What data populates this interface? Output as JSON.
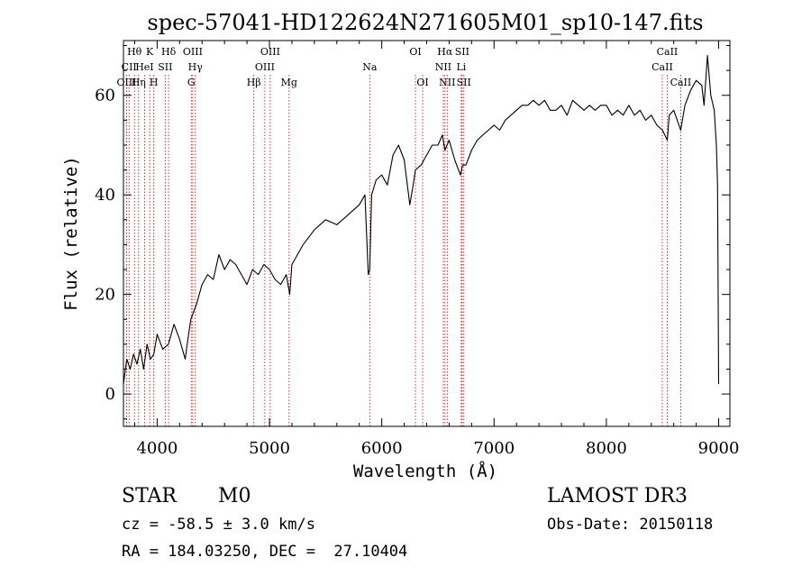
{
  "chart_data": {
    "type": "line",
    "title": "spec-57041-HD122624N271605M01_sp10-147.fits",
    "xlabel": "Wavelength (Å)",
    "ylabel": "Flux (relative)",
    "xlim": [
      3700,
      9100
    ],
    "ylim": [
      -6.5,
      71
    ],
    "xticks": [
      4000,
      5000,
      6000,
      7000,
      8000,
      9000
    ],
    "yticks": [
      0,
      20,
      40,
      60
    ],
    "grid": false,
    "line_color": "#000000",
    "marker_color": "#cc0000",
    "series": [
      {
        "x": [
          3700,
          3730,
          3760,
          3790,
          3820,
          3850,
          3880,
          3910,
          3940,
          3970,
          4000,
          4050,
          4100,
          4150,
          4200,
          4250,
          4280,
          4300,
          4350,
          4400,
          4450,
          4500,
          4550,
          4600,
          4650,
          4700,
          4750,
          4800,
          4850,
          4900,
          4950,
          5000,
          5050,
          5100,
          5150,
          5180,
          5200,
          5300,
          5400,
          5500,
          5600,
          5700,
          5800,
          5850,
          5880,
          5893,
          5910,
          5950,
          6000,
          6050,
          6100,
          6150,
          6200,
          6250,
          6280,
          6300,
          6350,
          6400,
          6450,
          6500,
          6540,
          6563,
          6600,
          6650,
          6700,
          6720,
          6750,
          6800,
          6850,
          6900,
          6950,
          7000,
          7050,
          7100,
          7150,
          7200,
          7250,
          7300,
          7350,
          7400,
          7450,
          7500,
          7550,
          7600,
          7650,
          7700,
          7750,
          7800,
          7850,
          7900,
          7950,
          8000,
          8050,
          8100,
          8150,
          8200,
          8250,
          8300,
          8350,
          8400,
          8450,
          8500,
          8542,
          8560,
          8600,
          8662,
          8700,
          8750,
          8800,
          8850,
          8870,
          8900,
          8930,
          8960,
          8980,
          8990,
          9000
        ],
        "y": [
          2,
          7,
          5,
          8,
          6,
          9,
          5,
          10,
          7,
          8,
          12,
          9,
          10,
          14,
          11,
          7,
          12,
          15,
          18,
          22,
          24,
          23,
          28,
          25,
          27,
          26,
          24,
          22,
          25,
          24,
          26,
          25,
          23,
          22,
          24,
          20,
          26,
          30,
          33,
          35,
          34,
          36,
          38,
          40,
          24,
          25,
          40,
          43,
          44,
          42,
          48,
          50,
          47,
          38,
          42,
          45,
          46,
          48,
          50,
          50,
          52,
          49,
          51,
          47,
          44,
          46,
          46,
          49,
          51,
          52,
          53,
          54,
          53,
          55,
          56,
          57,
          58,
          58,
          59,
          58,
          59,
          57,
          57,
          58,
          56,
          59,
          58,
          57,
          58,
          57,
          58,
          58,
          56,
          57,
          56,
          58,
          56,
          57,
          55,
          56,
          54,
          53,
          51,
          56,
          57,
          53,
          58,
          61,
          63,
          62,
          58,
          68,
          60,
          57,
          50,
          42,
          2
        ]
      }
    ],
    "lines": [
      {
        "name": "Hθ",
        "x": 3798,
        "row": 0
      },
      {
        "name": "CII",
        "x": 3750,
        "row": 1
      },
      {
        "name": "OIII",
        "x": 3728,
        "row": 2
      },
      {
        "name": "Hη",
        "x": 3835,
        "row": 2
      },
      {
        "name": "HeI",
        "x": 3888,
        "row": 1
      },
      {
        "name": "K",
        "x": 3934,
        "row": 0
      },
      {
        "name": "H",
        "x": 3970,
        "row": 2
      },
      {
        "name": "SII",
        "x": 4072,
        "row": 1
      },
      {
        "name": "Hδ",
        "x": 4102,
        "row": 0
      },
      {
        "name": "OIII",
        "x": 4317,
        "row": 0
      },
      {
        "name": "Hγ",
        "x": 4340,
        "row": 1
      },
      {
        "name": "G",
        "x": 4304,
        "row": 2
      },
      {
        "name": "Hβ",
        "x": 4861,
        "row": 2
      },
      {
        "name": "OIII",
        "x": 4959,
        "row": 1
      },
      {
        "name": "OIII",
        "x": 5007,
        "row": 0
      },
      {
        "name": "Mg",
        "x": 5175,
        "row": 2
      },
      {
        "name": "Na",
        "x": 5893,
        "row": 1
      },
      {
        "name": "OI",
        "x": 6300,
        "row": 0
      },
      {
        "name": "OI",
        "x": 6364,
        "row": 2
      },
      {
        "name": "Hα",
        "x": 6563,
        "row": 0
      },
      {
        "name": "NII",
        "x": 6548,
        "row": 1
      },
      {
        "name": "NII",
        "x": 6583,
        "row": 2
      },
      {
        "name": "SII",
        "x": 6716,
        "row": 0
      },
      {
        "name": "Li",
        "x": 6708,
        "row": 1
      },
      {
        "name": "SII",
        "x": 6731,
        "row": 2
      },
      {
        "name": "CaII",
        "x": 8542,
        "row": 0
      },
      {
        "name": "CaII",
        "x": 8498,
        "row": 1
      },
      {
        "name": "CaII",
        "x": 8662,
        "row": 2
      }
    ]
  },
  "info": {
    "class_label": "STAR",
    "subclass": "M0",
    "survey": "LAMOST DR3",
    "cz": "cz = -58.5 ± 3.0 km/s",
    "obs_date": "Obs-Date: 20150118",
    "coords": "RA = 184.03250, DEC =  27.10404"
  }
}
